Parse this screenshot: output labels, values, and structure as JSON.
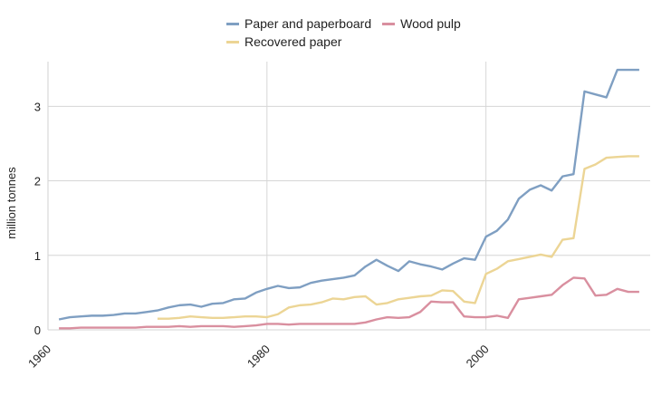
{
  "chart_data": {
    "type": "line",
    "title": "",
    "xlabel": "",
    "ylabel": "million tonnes",
    "xlim": [
      1960,
      2015
    ],
    "ylim": [
      0,
      3.6
    ],
    "x_ticks": [
      1960,
      1980,
      2000
    ],
    "y_ticks": [
      0,
      1,
      2,
      3
    ],
    "grid": true,
    "legend_position": "top",
    "series": [
      {
        "name": "Paper and paperboard",
        "color": "#7f9fc2",
        "x": [
          1961,
          1962,
          1963,
          1964,
          1965,
          1966,
          1967,
          1968,
          1969,
          1970,
          1971,
          1972,
          1973,
          1974,
          1975,
          1976,
          1977,
          1978,
          1979,
          1980,
          1981,
          1982,
          1983,
          1984,
          1985,
          1986,
          1987,
          1988,
          1989,
          1990,
          1991,
          1992,
          1993,
          1994,
          1995,
          1996,
          1997,
          1998,
          1999,
          2000,
          2001,
          2002,
          2003,
          2004,
          2005,
          2006,
          2007,
          2008,
          2009,
          2010,
          2011,
          2012,
          2013,
          2014
        ],
        "values": [
          0.14,
          0.17,
          0.18,
          0.19,
          0.19,
          0.2,
          0.22,
          0.22,
          0.24,
          0.26,
          0.3,
          0.33,
          0.34,
          0.31,
          0.35,
          0.36,
          0.41,
          0.42,
          0.5,
          0.55,
          0.59,
          0.56,
          0.57,
          0.63,
          0.66,
          0.68,
          0.7,
          0.73,
          0.85,
          0.94,
          0.86,
          0.79,
          0.92,
          0.88,
          0.85,
          0.81,
          0.89,
          0.96,
          0.94,
          1.25,
          1.33,
          1.48,
          1.76,
          1.88,
          1.94,
          1.87,
          2.06,
          2.09,
          3.2,
          3.16,
          3.12,
          3.49,
          3.49,
          3.49
        ]
      },
      {
        "name": "Recovered paper",
        "color": "#ecd595",
        "x": [
          1970,
          1971,
          1972,
          1973,
          1974,
          1975,
          1976,
          1977,
          1978,
          1979,
          1980,
          1981,
          1982,
          1983,
          1984,
          1985,
          1986,
          1987,
          1988,
          1989,
          1990,
          1991,
          1992,
          1993,
          1994,
          1995,
          1996,
          1997,
          1998,
          1999,
          2000,
          2001,
          2002,
          2003,
          2004,
          2005,
          2006,
          2007,
          2008,
          2009,
          2010,
          2011,
          2012,
          2013,
          2014
        ],
        "values": [
          0.15,
          0.15,
          0.16,
          0.18,
          0.17,
          0.16,
          0.16,
          0.17,
          0.18,
          0.18,
          0.17,
          0.21,
          0.3,
          0.33,
          0.34,
          0.37,
          0.42,
          0.41,
          0.44,
          0.45,
          0.34,
          0.36,
          0.41,
          0.43,
          0.45,
          0.46,
          0.53,
          0.52,
          0.38,
          0.36,
          0.75,
          0.82,
          0.92,
          0.95,
          0.98,
          1.01,
          0.98,
          1.21,
          1.23,
          2.16,
          2.22,
          2.31,
          2.32,
          2.33,
          2.33
        ]
      },
      {
        "name": "Wood pulp",
        "color": "#d98f9f",
        "x": [
          1961,
          1962,
          1963,
          1964,
          1965,
          1966,
          1967,
          1968,
          1969,
          1970,
          1971,
          1972,
          1973,
          1974,
          1975,
          1976,
          1977,
          1978,
          1979,
          1980,
          1981,
          1982,
          1983,
          1984,
          1985,
          1986,
          1987,
          1988,
          1989,
          1990,
          1991,
          1992,
          1993,
          1994,
          1995,
          1996,
          1997,
          1998,
          1999,
          2000,
          2001,
          2002,
          2003,
          2004,
          2005,
          2006,
          2007,
          2008,
          2009,
          2010,
          2011,
          2012,
          2013,
          2014
        ],
        "values": [
          0.02,
          0.02,
          0.03,
          0.03,
          0.03,
          0.03,
          0.03,
          0.03,
          0.04,
          0.04,
          0.04,
          0.05,
          0.04,
          0.05,
          0.05,
          0.05,
          0.04,
          0.05,
          0.06,
          0.08,
          0.08,
          0.07,
          0.08,
          0.08,
          0.08,
          0.08,
          0.08,
          0.08,
          0.1,
          0.14,
          0.17,
          0.16,
          0.17,
          0.24,
          0.38,
          0.37,
          0.37,
          0.18,
          0.17,
          0.17,
          0.19,
          0.16,
          0.41,
          0.43,
          0.45,
          0.47,
          0.6,
          0.7,
          0.69,
          0.46,
          0.47,
          0.55,
          0.51,
          0.51
        ]
      }
    ]
  }
}
